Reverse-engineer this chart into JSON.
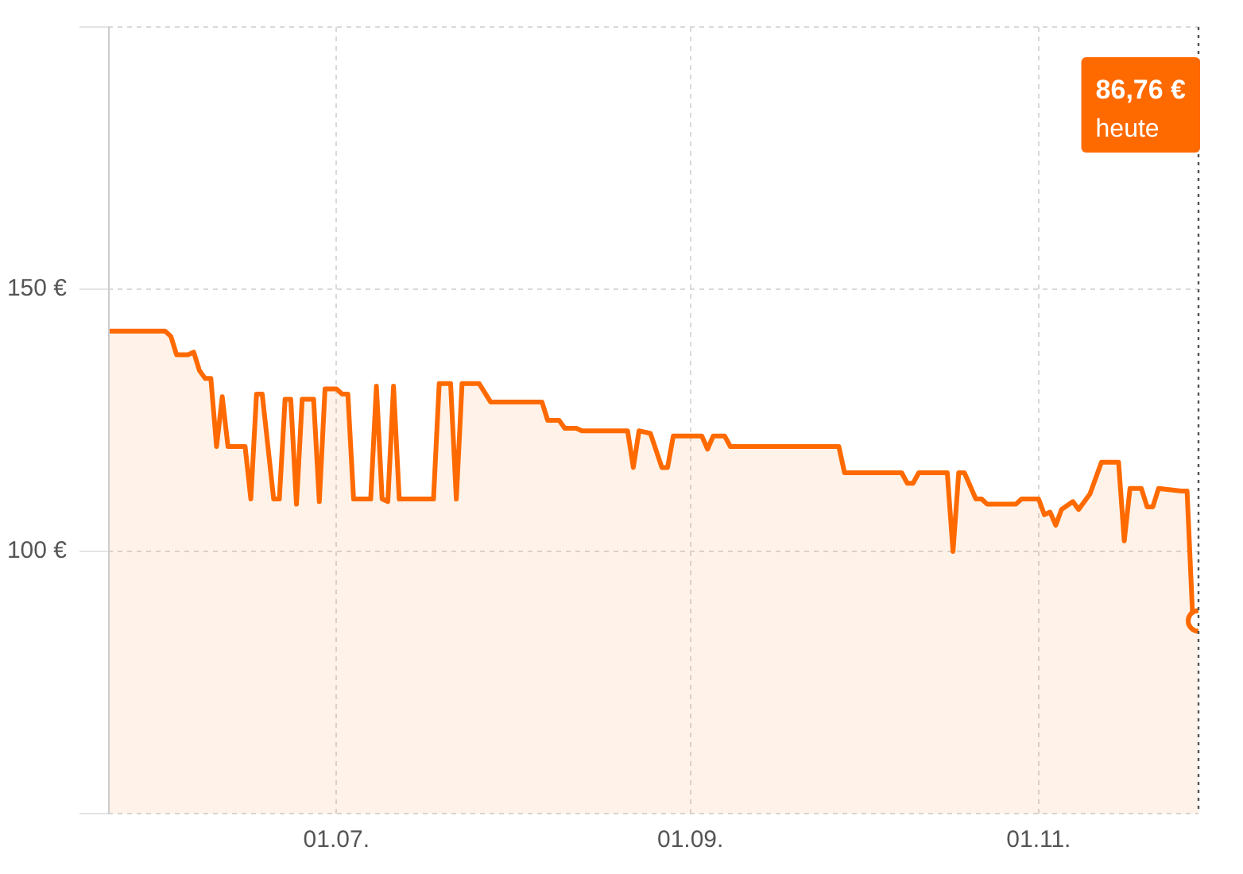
{
  "chart_data": {
    "type": "area",
    "x": [
      "--05-22",
      "--06-01",
      "--06-02",
      "--06-03",
      "--06-05",
      "--06-06",
      "--06-07",
      "--06-08",
      "--06-09",
      "--06-10",
      "--06-11",
      "--06-12",
      "--06-15",
      "--06-16",
      "--06-17",
      "--06-18",
      "--06-20",
      "--06-21",
      "--06-22",
      "--06-23",
      "--06-24",
      "--06-25",
      "--06-27",
      "--06-28",
      "--06-29",
      "--07-01",
      "--07-02",
      "--07-03",
      "--07-04",
      "--07-07",
      "--07-08",
      "--07-09",
      "--07-10",
      "--07-11",
      "--07-12",
      "--07-18",
      "--07-19",
      "--07-21",
      "--07-22",
      "--07-23",
      "--07-26",
      "--07-28",
      "--08-06",
      "--08-07",
      "--08-09",
      "--08-10",
      "--08-12",
      "--08-13",
      "--08-21",
      "--08-22",
      "--08-23",
      "--08-25",
      "--08-27",
      "--08-28",
      "--08-29",
      "--09-03",
      "--09-04",
      "--09-05",
      "--09-07",
      "--09-08",
      "--09-27",
      "--09-28",
      "--10-08",
      "--10-09",
      "--10-10",
      "--10-11",
      "--10-16",
      "--10-17",
      "--10-18",
      "--10-19",
      "--10-21",
      "--10-22",
      "--10-23",
      "--10-28",
      "--10-29",
      "--11-01",
      "--11-02",
      "--11-03",
      "--11-04",
      "--11-05",
      "--11-07",
      "--11-08",
      "--11-10",
      "--11-12",
      "--11-15",
      "--11-16",
      "--11-17",
      "--11-19",
      "--11-20",
      "--11-21",
      "--11-22",
      "--11-26",
      "--11-27",
      "--11-28",
      "--11-29"
    ],
    "series": [
      {
        "color": "#ff6a00",
        "values": [
          142,
          142,
          141,
          137.5,
          137.5,
          138,
          134.5,
          133,
          133,
          120,
          129.5,
          120,
          120,
          110,
          130,
          130,
          110,
          110,
          129,
          129,
          109,
          129,
          129,
          109.5,
          131,
          131,
          130,
          130,
          110,
          110,
          131.5,
          110,
          109.5,
          131.5,
          110,
          110,
          132,
          132,
          110,
          132,
          132,
          128.5,
          128.5,
          125,
          125,
          123.5,
          123.5,
          123,
          123,
          116,
          123,
          122.5,
          116,
          116,
          122,
          122,
          119.5,
          122,
          122,
          120,
          120,
          115,
          115,
          113,
          113,
          115,
          115,
          100,
          115,
          115,
          110,
          110,
          109,
          109,
          110,
          110,
          107,
          107.5,
          105,
          108,
          109.5,
          108,
          111,
          117,
          117,
          102,
          112,
          112,
          108.5,
          108.5,
          112,
          111.5,
          111.5,
          87,
          86.76
        ]
      }
    ],
    "xlim": [
      "--05-22",
      "--11-29"
    ],
    "xticks": [
      {
        "value": "--07-01",
        "label": "01.07."
      },
      {
        "value": "--09-01",
        "label": "01.09."
      },
      {
        "value": "--11-01",
        "label": "01.11."
      }
    ],
    "ylim": [
      50,
      200
    ],
    "yticks": [
      {
        "value": 50,
        "label": null
      },
      {
        "value": 100,
        "label": "100 €"
      },
      {
        "value": 150,
        "label": "150 €"
      },
      {
        "value": 200,
        "label": null
      }
    ],
    "grid": true,
    "ref_lines": [
      {
        "axis": "x",
        "value": "--11-29",
        "line_style": "dotted",
        "color": "#555555"
      }
    ],
    "annotations": [
      "86,76 €",
      "heute"
    ]
  }
}
